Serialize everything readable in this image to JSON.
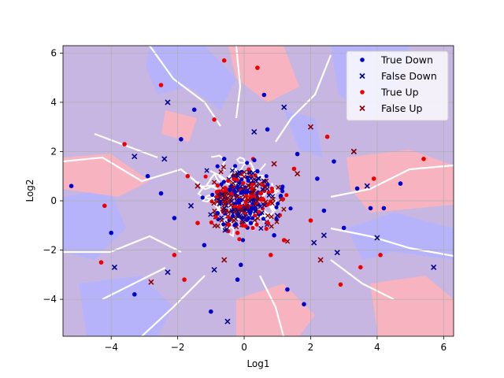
{
  "chart_data": {
    "type": "scatter",
    "title": "",
    "xlabel": "Log1",
    "ylabel": "Log2",
    "xlim": [
      -5.45,
      6.3
    ],
    "ylim": [
      -5.5,
      6.3
    ],
    "xticks": [
      -4,
      -2,
      0,
      2,
      4,
      6
    ],
    "yticks": [
      -4,
      -2,
      0,
      2,
      4,
      6
    ],
    "grid": true,
    "legend_position": "top-right",
    "background": "decision-region map: blue (#b9b3ff) / red (#ffb6b9) regions with white boundaries",
    "series": [
      {
        "name": "True Down",
        "marker": "circle",
        "color": "#0000cc",
        "points": [
          [
            -5.2,
            0.6
          ],
          [
            -4.0,
            -1.3
          ],
          [
            -3.3,
            -3.8
          ],
          [
            -2.9,
            1.0
          ],
          [
            -2.5,
            0.3
          ],
          [
            -2.1,
            -0.7
          ],
          [
            -1.9,
            2.5
          ],
          [
            -1.5,
            3.7
          ],
          [
            -1.2,
            -1.8
          ],
          [
            -0.8,
            -0.5
          ],
          [
            -0.6,
            1.7
          ],
          [
            -0.3,
            0.4
          ],
          [
            -0.1,
            -2.6
          ],
          [
            0.2,
            -0.9
          ],
          [
            0.4,
            1.2
          ],
          [
            0.7,
            2.9
          ],
          [
            0.9,
            -1.4
          ],
          [
            1.1,
            0.2
          ],
          [
            1.3,
            -3.6
          ],
          [
            1.6,
            1.9
          ],
          [
            1.8,
            -4.2
          ],
          [
            2.2,
            0.9
          ],
          [
            2.4,
            -0.4
          ],
          [
            2.7,
            1.6
          ],
          [
            3.0,
            -1.1
          ],
          [
            3.4,
            0.5
          ],
          [
            3.8,
            -0.3
          ],
          [
            4.2,
            -0.3
          ],
          [
            4.7,
            0.7
          ],
          [
            -0.2,
            -3.2
          ],
          [
            0.6,
            4.3
          ],
          [
            -1.0,
            -4.5
          ]
        ]
      },
      {
        "name": "False Down",
        "marker": "x",
        "color": "#00008b",
        "points": [
          [
            -3.9,
            -2.7
          ],
          [
            -3.3,
            1.8
          ],
          [
            -2.4,
            1.7
          ],
          [
            -2.3,
            4.0
          ],
          [
            -2.3,
            -2.9
          ],
          [
            -1.6,
            -0.2
          ],
          [
            -0.9,
            -2.8
          ],
          [
            -0.5,
            -4.9
          ],
          [
            0.3,
            2.8
          ],
          [
            1.0,
            -0.6
          ],
          [
            2.1,
            -1.7
          ],
          [
            2.4,
            -1.4
          ],
          [
            2.8,
            -2.1
          ],
          [
            3.3,
            2.0
          ],
          [
            3.7,
            0.6
          ],
          [
            4.0,
            -1.5
          ],
          [
            5.7,
            -2.7
          ],
          [
            1.2,
            3.8
          ]
        ]
      },
      {
        "name": "True Up",
        "marker": "circle",
        "color": "#ee0000",
        "points": [
          [
            -4.3,
            -2.5
          ],
          [
            -4.2,
            -0.2
          ],
          [
            -3.6,
            2.3
          ],
          [
            -2.5,
            4.7
          ],
          [
            -2.1,
            -2.2
          ],
          [
            -1.7,
            1.0
          ],
          [
            -1.4,
            -0.9
          ],
          [
            -0.6,
            5.7
          ],
          [
            -0.2,
            -1.3
          ],
          [
            0.4,
            5.4
          ],
          [
            0.5,
            0.3
          ],
          [
            0.8,
            -2.2
          ],
          [
            1.5,
            1.3
          ],
          [
            2.0,
            -0.8
          ],
          [
            2.5,
            2.6
          ],
          [
            2.9,
            -3.4
          ],
          [
            3.5,
            -2.7
          ],
          [
            3.9,
            0.9
          ],
          [
            4.1,
            -2.2
          ],
          [
            5.4,
            1.7
          ],
          [
            -1.8,
            -3.2
          ],
          [
            -0.9,
            3.3
          ],
          [
            1.2,
            -1.6
          ]
        ]
      },
      {
        "name": "False Up",
        "marker": "x",
        "color": "#8b0000",
        "points": [
          [
            -2.8,
            -3.3
          ],
          [
            -1.4,
            0.6
          ],
          [
            -0.6,
            -2.4
          ],
          [
            0.9,
            1.5
          ],
          [
            1.6,
            1.1
          ],
          [
            2.0,
            3.0
          ],
          [
            2.3,
            -2.4
          ],
          [
            3.3,
            2.0
          ],
          [
            -0.3,
            -0.8
          ]
        ]
      }
    ]
  }
}
